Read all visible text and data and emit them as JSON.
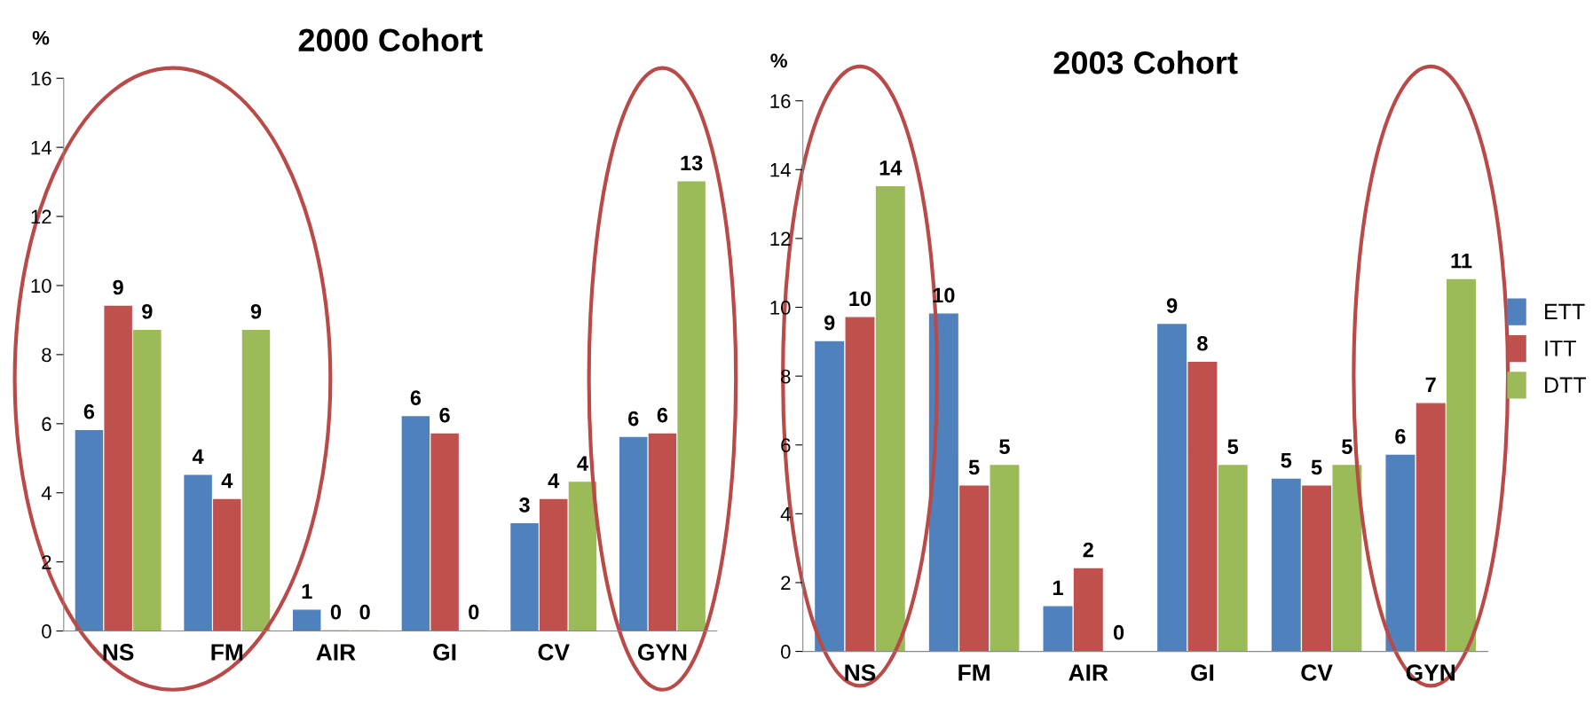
{
  "chart_data": [
    {
      "type": "bar",
      "title": "2000 Cohort",
      "ylabel": "%",
      "categories": [
        "NS",
        "FM",
        "AIR",
        "GI",
        "CV",
        "GYN"
      ],
      "ylim": [
        0,
        16
      ],
      "yticks": [
        0,
        2,
        4,
        6,
        8,
        10,
        12,
        14,
        16
      ],
      "grid": false,
      "series": [
        {
          "color": "#4f81bd",
          "values": [
            5.8,
            4.5,
            0.6,
            6.2,
            3.1,
            5.6
          ],
          "value_labels": [
            "6",
            "4",
            "1",
            "6",
            "3",
            "6"
          ]
        },
        {
          "color": "#c0504d",
          "values": [
            9.4,
            3.8,
            0,
            5.7,
            3.8,
            5.7
          ],
          "value_labels": [
            "9",
            "4",
            "0",
            "6",
            "4",
            "6"
          ]
        },
        {
          "color": "#9bbb59",
          "values": [
            8.7,
            8.7,
            0,
            0,
            4.3,
            13.0
          ],
          "value_labels": [
            "9",
            "9",
            "0",
            "0",
            "4",
            "13"
          ]
        }
      ]
    },
    {
      "type": "bar",
      "title": "2003 Cohort",
      "ylabel": "%",
      "categories": [
        "NS",
        "FM",
        "AIR",
        "GI",
        "CV",
        "GYN"
      ],
      "ylim": [
        0,
        16
      ],
      "yticks": [
        0,
        2,
        4,
        6,
        8,
        10,
        12,
        14,
        16
      ],
      "grid": false,
      "legend": "right",
      "series": [
        {
          "name": "ETT",
          "color": "#4f81bd",
          "values": [
            9.0,
            9.8,
            1.3,
            9.5,
            5.0,
            5.7
          ],
          "value_labels": [
            "9",
            "10",
            "1",
            "9",
            "5",
            "6"
          ]
        },
        {
          "name": "ITT",
          "color": "#c0504d",
          "values": [
            9.7,
            4.8,
            2.4,
            8.4,
            4.8,
            7.2
          ],
          "value_labels": [
            "10",
            "5",
            "2",
            "8",
            "5",
            "7"
          ]
        },
        {
          "name": "DTT",
          "color": "#9bbb59",
          "values": [
            13.5,
            5.4,
            0,
            5.4,
            5.4,
            10.8
          ],
          "value_labels": [
            "14",
            "5",
            "0",
            "5",
            "5",
            "11"
          ]
        }
      ]
    }
  ]
}
